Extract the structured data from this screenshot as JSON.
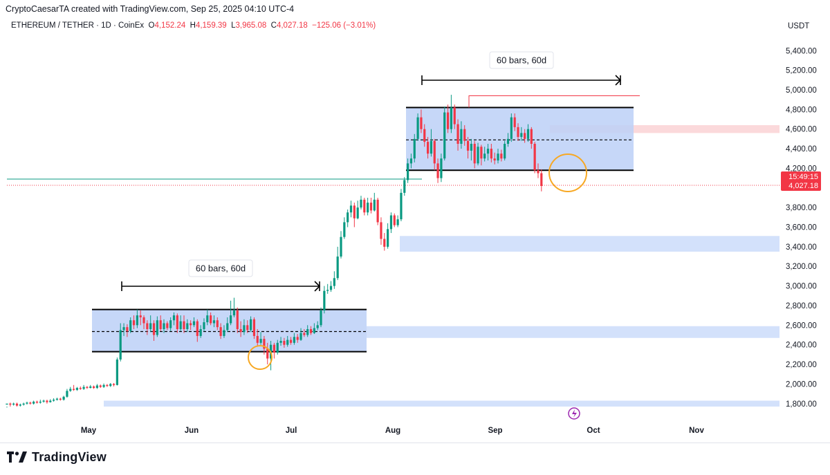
{
  "header": {
    "credit": "CryptoCaesarTA created with TradingView.com, Sep 25, 2025 04:10 UTC-4"
  },
  "legend": {
    "symbol": "ETHEREUM / TETHER · 1D · CoinEx",
    "open_label": "O",
    "open": "4,152.24",
    "high_label": "H",
    "high": "4,159.39",
    "low_label": "L",
    "low": "3,965.08",
    "close_label": "C",
    "close": "4,027.18",
    "change": "−125.06 (−3.01%)"
  },
  "currency": "USDT",
  "colors": {
    "up": "#089981",
    "down": "#f23645",
    "range_fill": "#bcd0f7",
    "zone_fill": "#d3e1fb",
    "resistance_fill": "#fbd9db",
    "circle": "#f7a823",
    "price_tag": "#f23645"
  },
  "chart_data": {
    "type": "candlestick",
    "y_axis": {
      "ticks": [
        "5,400.00",
        "5,200.00",
        "5,000.00",
        "4,800.00",
        "4,600.00",
        "4,400.00",
        "4,200.00",
        "3,800.00",
        "3,600.00",
        "3,400.00",
        "3,200.00",
        "3,000.00",
        "2,800.00",
        "2,600.00",
        "2,400.00",
        "2,200.00",
        "2,000.00",
        "1,800.00"
      ],
      "ylim": [
        1650,
        5500
      ]
    },
    "x_axis": {
      "ticks": [
        "May",
        "Jun",
        "Jul",
        "Aug",
        "Sep",
        "Oct",
        "Nov"
      ]
    },
    "last_price": "4,027.18",
    "countdown": "15:49:15",
    "annotations": {
      "measure_1": {
        "label": "60 bars, 60d"
      },
      "measure_2": {
        "label": "60 bars, 60d"
      },
      "range_1": {
        "top": 2760,
        "bottom": 2330,
        "mid": 2535
      },
      "range_2": {
        "top": 4820,
        "bottom": 4180,
        "mid": 4490
      },
      "support_zones": [
        {
          "top": 2590,
          "bottom": 2470
        },
        {
          "top": 3510,
          "bottom": 3350
        },
        {
          "top": 1830,
          "bottom": 1770
        }
      ],
      "resistance_zone": {
        "top": 4640,
        "bottom": 4560
      },
      "green_line": 4090,
      "red_line": 4940
    },
    "candles": [
      [
        1790,
        1800,
        1770,
        1760
      ],
      [
        1800,
        1790,
        1810,
        1770
      ],
      [
        1790,
        1800,
        1810,
        1780
      ],
      [
        1800,
        1780,
        1810,
        1770
      ],
      [
        1780,
        1790,
        1800,
        1770
      ],
      [
        1790,
        1800,
        1810,
        1780
      ],
      [
        1800,
        1810,
        1820,
        1790
      ],
      [
        1810,
        1800,
        1820,
        1790
      ],
      [
        1800,
        1820,
        1830,
        1790
      ],
      [
        1820,
        1810,
        1830,
        1800
      ],
      [
        1810,
        1820,
        1840,
        1800
      ],
      [
        1820,
        1830,
        1840,
        1810
      ],
      [
        1830,
        1815,
        1840,
        1800
      ],
      [
        1815,
        1830,
        1845,
        1810
      ],
      [
        1830,
        1840,
        1855,
        1820
      ],
      [
        1840,
        1850,
        1860,
        1830
      ],
      [
        1850,
        1840,
        1860,
        1830
      ],
      [
        1840,
        1870,
        1880,
        1830
      ],
      [
        1870,
        1930,
        1950,
        1860
      ],
      [
        1930,
        1950,
        1970,
        1920
      ],
      [
        1950,
        1940,
        1990,
        1930
      ],
      [
        1940,
        1960,
        1970,
        1930
      ],
      [
        1960,
        1950,
        1975,
        1940
      ],
      [
        1950,
        1970,
        1990,
        1940
      ],
      [
        1970,
        1960,
        1980,
        1950
      ],
      [
        1960,
        1975,
        1990,
        1955
      ],
      [
        1975,
        1960,
        1985,
        1950
      ],
      [
        1960,
        1985,
        2000,
        1950
      ],
      [
        1985,
        1970,
        1995,
        1960
      ],
      [
        1970,
        1990,
        2005,
        1960
      ],
      [
        1990,
        1980,
        2000,
        1970
      ],
      [
        1980,
        2000,
        2010,
        1970
      ],
      [
        2000,
        1990,
        2010,
        1975
      ],
      [
        1990,
        2250,
        2270,
        1985
      ],
      [
        2250,
        2550,
        2620,
        2230
      ],
      [
        2550,
        2580,
        2620,
        2490
      ],
      [
        2580,
        2540,
        2610,
        2480
      ],
      [
        2540,
        2650,
        2680,
        2520
      ],
      [
        2650,
        2600,
        2700,
        2560
      ],
      [
        2600,
        2700,
        2760,
        2570
      ],
      [
        2700,
        2680,
        2750,
        2600
      ],
      [
        2680,
        2620,
        2700,
        2560
      ],
      [
        2620,
        2560,
        2650,
        2500
      ],
      [
        2560,
        2620,
        2700,
        2530
      ],
      [
        2620,
        2500,
        2650,
        2440
      ],
      [
        2500,
        2650,
        2690,
        2480
      ],
      [
        2650,
        2560,
        2700,
        2540
      ],
      [
        2560,
        2620,
        2660,
        2520
      ],
      [
        2620,
        2570,
        2640,
        2550
      ],
      [
        2570,
        2650,
        2680,
        2540
      ],
      [
        2650,
        2700,
        2730,
        2600
      ],
      [
        2700,
        2560,
        2720,
        2520
      ],
      [
        2560,
        2640,
        2700,
        2540
      ],
      [
        2640,
        2560,
        2700,
        2520
      ],
      [
        2560,
        2620,
        2660,
        2530
      ],
      [
        2620,
        2600,
        2650,
        2550
      ],
      [
        2600,
        2640,
        2680,
        2580
      ],
      [
        2640,
        2490,
        2660,
        2430
      ],
      [
        2490,
        2560,
        2600,
        2470
      ],
      [
        2560,
        2630,
        2670,
        2540
      ],
      [
        2630,
        2700,
        2760,
        2600
      ],
      [
        2700,
        2620,
        2730,
        2600
      ],
      [
        2620,
        2650,
        2700,
        2580
      ],
      [
        2650,
        2580,
        2680,
        2550
      ],
      [
        2580,
        2490,
        2620,
        2460
      ],
      [
        2490,
        2550,
        2600,
        2470
      ],
      [
        2550,
        2620,
        2680,
        2530
      ],
      [
        2620,
        2700,
        2850,
        2600
      ],
      [
        2700,
        2750,
        2880,
        2680
      ],
      [
        2750,
        2560,
        2780,
        2520
      ],
      [
        2560,
        2530,
        2640,
        2480
      ],
      [
        2530,
        2600,
        2660,
        2500
      ],
      [
        2600,
        2550,
        2650,
        2520
      ],
      [
        2550,
        2660,
        2690,
        2530
      ],
      [
        2660,
        2490,
        2680,
        2460
      ],
      [
        2490,
        2420,
        2560,
        2380
      ],
      [
        2420,
        2460,
        2530,
        2400
      ],
      [
        2460,
        2360,
        2490,
        2300
      ],
      [
        2360,
        2260,
        2420,
        2200
      ],
      [
        2260,
        2400,
        2440,
        2140
      ],
      [
        2400,
        2320,
        2420,
        2260
      ],
      [
        2320,
        2420,
        2450,
        2300
      ],
      [
        2420,
        2440,
        2480,
        2390
      ],
      [
        2440,
        2400,
        2470,
        2370
      ],
      [
        2400,
        2450,
        2490,
        2380
      ],
      [
        2450,
        2420,
        2480,
        2400
      ],
      [
        2420,
        2480,
        2520,
        2400
      ],
      [
        2480,
        2450,
        2510,
        2420
      ],
      [
        2450,
        2520,
        2570,
        2440
      ],
      [
        2520,
        2500,
        2560,
        2480
      ],
      [
        2500,
        2560,
        2600,
        2480
      ],
      [
        2560,
        2520,
        2590,
        2500
      ],
      [
        2520,
        2570,
        2620,
        2510
      ],
      [
        2570,
        2600,
        2640,
        2550
      ],
      [
        2600,
        2750,
        2780,
        2580
      ],
      [
        2750,
        2950,
        3000,
        2720
      ],
      [
        2950,
        2960,
        3020,
        2920
      ],
      [
        2960,
        3000,
        3050,
        2940
      ],
      [
        3000,
        3080,
        3150,
        2970
      ],
      [
        3080,
        3300,
        3400,
        3060
      ],
      [
        3300,
        3500,
        3560,
        3280
      ],
      [
        3500,
        3650,
        3700,
        3480
      ],
      [
        3650,
        3750,
        3780,
        3600
      ],
      [
        3750,
        3820,
        3870,
        3700
      ],
      [
        3820,
        3690,
        3850,
        3600
      ],
      [
        3690,
        3800,
        3870,
        3680
      ],
      [
        3800,
        3880,
        3920,
        3780
      ],
      [
        3880,
        3750,
        3900,
        3720
      ],
      [
        3750,
        3850,
        3900,
        3720
      ],
      [
        3850,
        3770,
        3900,
        3740
      ],
      [
        3770,
        3880,
        3950,
        3760
      ],
      [
        3880,
        3650,
        3900,
        3620
      ],
      [
        3650,
        3480,
        3700,
        3420
      ],
      [
        3480,
        3400,
        3540,
        3360
      ],
      [
        3400,
        3580,
        3640,
        3380
      ],
      [
        3580,
        3720,
        3750,
        3540
      ],
      [
        3720,
        3620,
        3740,
        3600
      ],
      [
        3620,
        3680,
        3720,
        3600
      ],
      [
        3680,
        3950,
        3990,
        3660
      ],
      [
        3950,
        4080,
        4110,
        3920
      ],
      [
        4080,
        4250,
        4300,
        4050
      ],
      [
        4250,
        4300,
        4350,
        4200
      ],
      [
        4300,
        4500,
        4550,
        4260
      ],
      [
        4500,
        4720,
        4760,
        4480
      ],
      [
        4720,
        4600,
        4800,
        4560
      ],
      [
        4600,
        4470,
        4650,
        4420
      ],
      [
        4470,
        4350,
        4520,
        4300
      ],
      [
        4350,
        4480,
        4600,
        4320
      ],
      [
        4480,
        4250,
        4500,
        4180
      ],
      [
        4250,
        4100,
        4300,
        4050
      ],
      [
        4100,
        4300,
        4350,
        4060
      ],
      [
        4300,
        4770,
        4830,
        4280
      ],
      [
        4770,
        4600,
        4850,
        4560
      ],
      [
        4600,
        4820,
        4950,
        4560
      ],
      [
        4820,
        4650,
        4850,
        4600
      ],
      [
        4650,
        4450,
        4700,
        4380
      ],
      [
        4450,
        4600,
        4680,
        4400
      ],
      [
        4600,
        4480,
        4640,
        4430
      ],
      [
        4480,
        4380,
        4520,
        4300
      ],
      [
        4380,
        4450,
        4500,
        4280
      ],
      [
        4450,
        4250,
        4480,
        4200
      ],
      [
        4250,
        4420,
        4460,
        4230
      ],
      [
        4420,
        4300,
        4440,
        4230
      ],
      [
        4300,
        4350,
        4420,
        4270
      ],
      [
        4350,
        4400,
        4450,
        4280
      ],
      [
        4400,
        4300,
        4450,
        4260
      ],
      [
        4300,
        4280,
        4360,
        4240
      ],
      [
        4280,
        4350,
        4400,
        4250
      ],
      [
        4350,
        4300,
        4390,
        4270
      ],
      [
        4300,
        4450,
        4480,
        4280
      ],
      [
        4450,
        4500,
        4560,
        4420
      ],
      [
        4500,
        4720,
        4760,
        4470
      ],
      [
        4720,
        4620,
        4760,
        4580
      ],
      [
        4620,
        4520,
        4660,
        4480
      ],
      [
        4520,
        4560,
        4620,
        4480
      ],
      [
        4560,
        4500,
        4600,
        4460
      ],
      [
        4500,
        4600,
        4650,
        4470
      ],
      [
        4600,
        4450,
        4620,
        4400
      ],
      [
        4450,
        4180,
        4470,
        4150
      ],
      [
        4180,
        4150,
        4250,
        4100
      ],
      [
        4150,
        4020,
        4190,
        3965
      ]
    ]
  },
  "footer": {
    "brand": "TradingView"
  }
}
